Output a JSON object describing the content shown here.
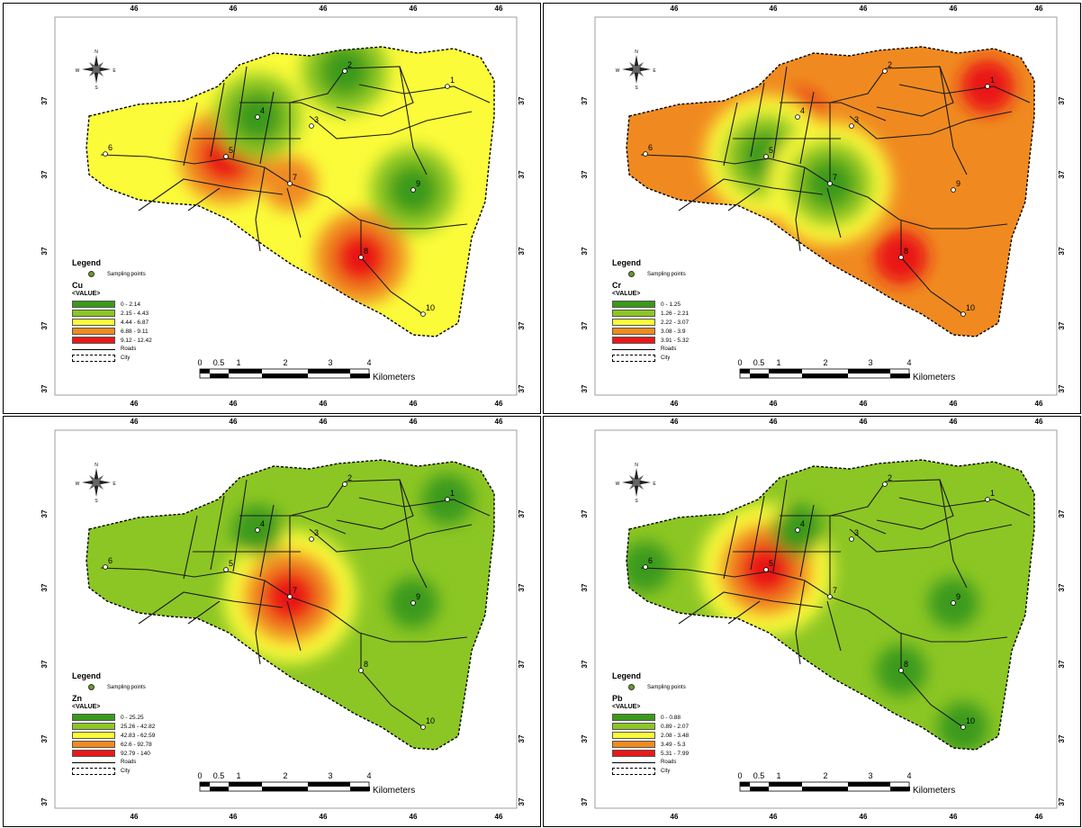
{
  "panels": [
    {
      "id": "cu",
      "element": "Cu",
      "legend_title": "Legend",
      "sampling_label": "Sampling points",
      "value_label": "<VALUE>",
      "classes": [
        "0 - 2.14",
        "2.15 - 4.43",
        "4.44 - 6.87",
        "6.88 - 9.11",
        "9.12 - 12.42"
      ],
      "roads_label": "Roads",
      "city_label": "City",
      "hotspots": [
        {
          "point": "5",
          "cls": 4
        },
        {
          "point": "8",
          "cls": 4
        },
        {
          "point": "7",
          "cls": 3
        },
        {
          "point": "4",
          "cls": 0
        },
        {
          "point": "2",
          "cls": 0
        },
        {
          "point": "9",
          "cls": 0
        }
      ],
      "base_class": 2
    },
    {
      "id": "cr",
      "element": "Cr",
      "legend_title": "Legend",
      "sampling_label": "Sampling points",
      "value_label": "<VALUE>",
      "classes": [
        "0 - 1.25",
        "1.26 - 2.21",
        "2.22 - 3.07",
        "3.08 - 3.9",
        "3.91 - 5.32"
      ],
      "roads_label": "Roads",
      "city_label": "City",
      "hotspots": [
        {
          "point": "4",
          "cls": 4
        },
        {
          "point": "1",
          "cls": 4
        },
        {
          "point": "8",
          "cls": 4
        },
        {
          "point": "5",
          "cls": 0
        },
        {
          "point": "7",
          "cls": 0
        },
        {
          "point": "6",
          "cls": 3
        }
      ],
      "base_class": 3
    },
    {
      "id": "zn",
      "element": "Zn",
      "legend_title": "Legend",
      "sampling_label": "Sampling points",
      "value_label": "<VALUE>",
      "classes": [
        "0 - 25.25",
        "25.26 - 42.82",
        "42.83 - 62.59",
        "62.6 - 92.78",
        "92.79 - 140"
      ],
      "roads_label": "Roads",
      "city_label": "City",
      "hotspots": [
        {
          "point": "7",
          "cls": 4
        },
        {
          "point": "4",
          "cls": 0
        },
        {
          "point": "9",
          "cls": 0
        },
        {
          "point": "1",
          "cls": 0
        }
      ],
      "base_class": 1
    },
    {
      "id": "pb",
      "element": "Pb",
      "legend_title": "Legend",
      "sampling_label": "Sampling points",
      "value_label": "<VALUE>",
      "classes": [
        "0 - 0.88",
        "0.89 - 2.07",
        "2.08 - 3.48",
        "3.49 - 5.3",
        "5.31 - 7.99"
      ],
      "roads_label": "Roads",
      "city_label": "City",
      "hotspots": [
        {
          "point": "5",
          "cls": 4
        },
        {
          "point": "6",
          "cls": 0
        },
        {
          "point": "4",
          "cls": 0
        },
        {
          "point": "9",
          "cls": 0
        },
        {
          "point": "8",
          "cls": 0
        },
        {
          "point": "10",
          "cls": 0
        }
      ],
      "base_class": 1
    }
  ],
  "class_colors": [
    "#3a9a1a",
    "#8cc624",
    "#fbfb3a",
    "#f08a20",
    "#ea1818"
  ],
  "sampling_point_labels": [
    "1",
    "2",
    "3",
    "4",
    "5",
    "6",
    "7",
    "8",
    "9",
    "10"
  ],
  "scalebar": {
    "ticks": [
      "0",
      "0.5",
      "1",
      "2",
      "3",
      "4"
    ],
    "unit": "Kilometers"
  },
  "grid": {
    "x_prefix": "46",
    "y_prefix": "37"
  }
}
